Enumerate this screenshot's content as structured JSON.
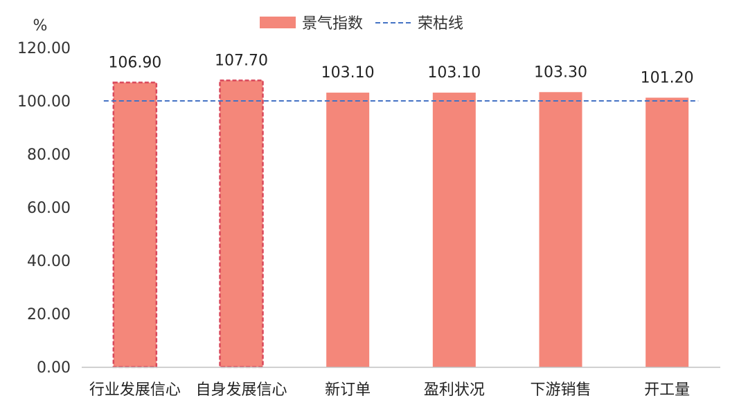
{
  "chart_data": {
    "type": "bar",
    "ylabel": "%",
    "ylim": [
      0,
      120
    ],
    "yticks": [
      "0.00",
      "20.00",
      "40.00",
      "60.00",
      "80.00",
      "100.00",
      "120.00"
    ],
    "categories": [
      "行业发展信心",
      "自身发展信心",
      "新订单",
      "盈利状况",
      "下游销售",
      "开工量"
    ],
    "series": [
      {
        "name": "景气指数",
        "values": [
          106.9,
          107.7,
          103.1,
          103.1,
          103.3,
          101.2
        ],
        "labels": [
          "106.90",
          "107.70",
          "103.10",
          "103.10",
          "103.30",
          "101.20"
        ],
        "highlighted": [
          true,
          true,
          false,
          false,
          false,
          false
        ]
      },
      {
        "name": "荣枯线",
        "value": 100,
        "style": "dashed"
      }
    ],
    "legend": "top-center",
    "grid": false,
    "colors": {
      "bar": "#F4877A",
      "highlight_border": "#D9485B",
      "line": "#4472C4",
      "axis": "#BFBFBF"
    }
  }
}
